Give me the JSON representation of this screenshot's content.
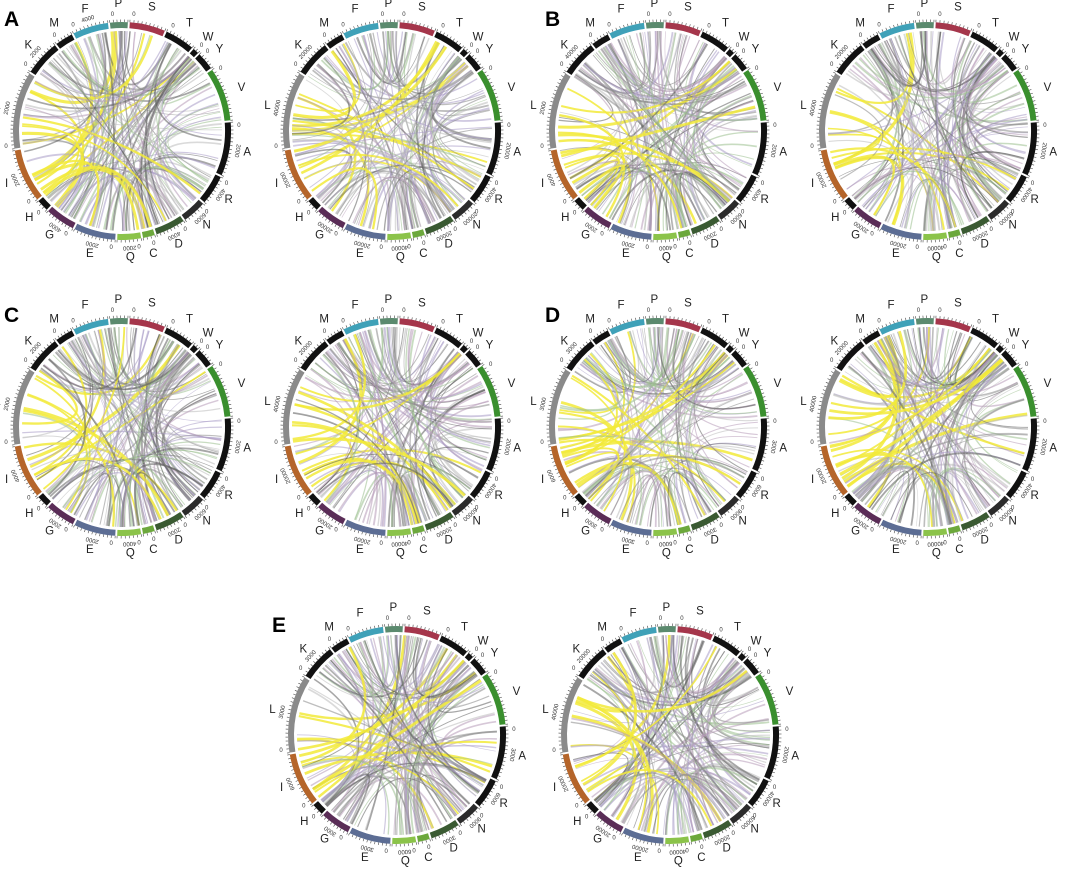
{
  "panel_letters": [
    "A",
    "B",
    "C",
    "D",
    "E"
  ],
  "segments": [
    {
      "aa": "A",
      "size": 9,
      "color": "#111111"
    },
    {
      "aa": "R",
      "size": 5,
      "color": "#111111"
    },
    {
      "aa": "N",
      "size": 4,
      "color": "#2b2b2b"
    },
    {
      "aa": "D",
      "size": 5,
      "color": "#3a5a32"
    },
    {
      "aa": "C",
      "size": 2,
      "color": "#6ca83c"
    },
    {
      "aa": "Q",
      "size": 4,
      "color": "#8bc34a"
    },
    {
      "aa": "E",
      "size": 7,
      "color": "#5c6d94"
    },
    {
      "aa": "G",
      "size": 5,
      "color": "#5a2d57"
    },
    {
      "aa": "H",
      "size": 2,
      "color": "#111111"
    },
    {
      "aa": "I",
      "size": 9,
      "color": "#b5652a"
    },
    {
      "aa": "L",
      "size": 13,
      "color": "#8a8a8a"
    },
    {
      "aa": "K",
      "size": 6,
      "color": "#111111"
    },
    {
      "aa": "M",
      "size": 3,
      "color": "#111111"
    },
    {
      "aa": "F",
      "size": 6,
      "color": "#3fa1b8"
    },
    {
      "aa": "P",
      "size": 3,
      "color": "#5b8a6e"
    },
    {
      "aa": "S",
      "size": 6,
      "color": "#a5364b"
    },
    {
      "aa": "T",
      "size": 5,
      "color": "#111111"
    },
    {
      "aa": "W",
      "size": 1,
      "color": "#111111"
    },
    {
      "aa": "Y",
      "size": 3,
      "color": "#111111"
    },
    {
      "aa": "V",
      "size": 9,
      "color": "#3a8f2e"
    }
  ],
  "panels": [
    {
      "letter": "A",
      "circles": [
        {
          "ticks": [
            "2000",
            "4000",
            "6000",
            "4000",
            "2000",
            "2000",
            "4000",
            "2000",
            "2000",
            "2000",
            "4000"
          ]
        },
        {
          "ticks": [
            "20000",
            "40000",
            "20000",
            "20000",
            "40000",
            "20000",
            "20000",
            "20000",
            "40000",
            "20000"
          ]
        }
      ]
    },
    {
      "letter": "B",
      "circles": [
        {
          "ticks": [
            "2000",
            "4000",
            "6000",
            "2000",
            "4000",
            "2000",
            "2000",
            "4000",
            "2000",
            "40000"
          ]
        },
        {
          "ticks": [
            "20000",
            "40000",
            "60000",
            "20000",
            "40000",
            "20000",
            "20000",
            "20000",
            "40000",
            "20000"
          ]
        }
      ]
    },
    {
      "letter": "C",
      "circles": [
        {
          "ticks": [
            "2000",
            "4000",
            "6000",
            "2000",
            "4000",
            "2000",
            "2000",
            "4000",
            "2000",
            "2000"
          ]
        },
        {
          "ticks": [
            "20000",
            "40000",
            "60000",
            "20000",
            "40000",
            "20000",
            "20000",
            "20000",
            "40000",
            "20000"
          ]
        }
      ]
    },
    {
      "letter": "D",
      "circles": [
        {
          "ticks": [
            "3000",
            "6000",
            "9000",
            "3000",
            "6000",
            "3000",
            "3000",
            "6000",
            "3000",
            "3000"
          ]
        },
        {
          "ticks": [
            "20000",
            "40000",
            "60000",
            "20000",
            "40000",
            "20000",
            "20000",
            "20000",
            "40000",
            "20000"
          ]
        }
      ]
    },
    {
      "letter": "E",
      "circles": [
        {
          "ticks": [
            "3000",
            "6000",
            "9000",
            "3000",
            "6000",
            "3000",
            "3000",
            "6000",
            "3000",
            "3000"
          ]
        },
        {
          "ticks": [
            "20000",
            "40000",
            "60000",
            "20000",
            "40000",
            "20000",
            "20000",
            "20000",
            "40000",
            "20000"
          ]
        }
      ]
    }
  ],
  "ribbon_colors": [
    "#f2ea3a",
    "#888888",
    "#a79ac7",
    "#9bbf8e",
    "#5e5e5e",
    "#b69ab8",
    "#bbbbbb"
  ]
}
